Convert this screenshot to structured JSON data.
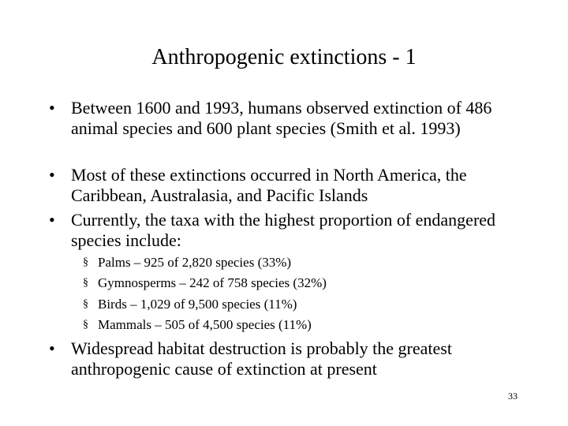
{
  "title": "Anthropogenic extinctions - 1",
  "bullets": [
    "Between 1600 and 1993, humans observed extinction of 486 animal species and 600 plant species (Smith et al. 1993)",
    "Most of these extinctions occurred in North America, the Caribbean, Australasia, and Pacific Islands",
    "Currently, the taxa with the highest proportion of endangered species include:"
  ],
  "sub_bullets": [
    "Palms – 925 of 2,820 species (33%)",
    "Gymnosperms – 242 of 758 species (32%)",
    "Birds – 1,029 of 9,500 species (11%)",
    "Mammals – 505 of 4,500 species (11%)"
  ],
  "final_bullet": "Widespread habitat destruction is probably the greatest anthropogenic cause of extinction at present",
  "page_number": "33"
}
